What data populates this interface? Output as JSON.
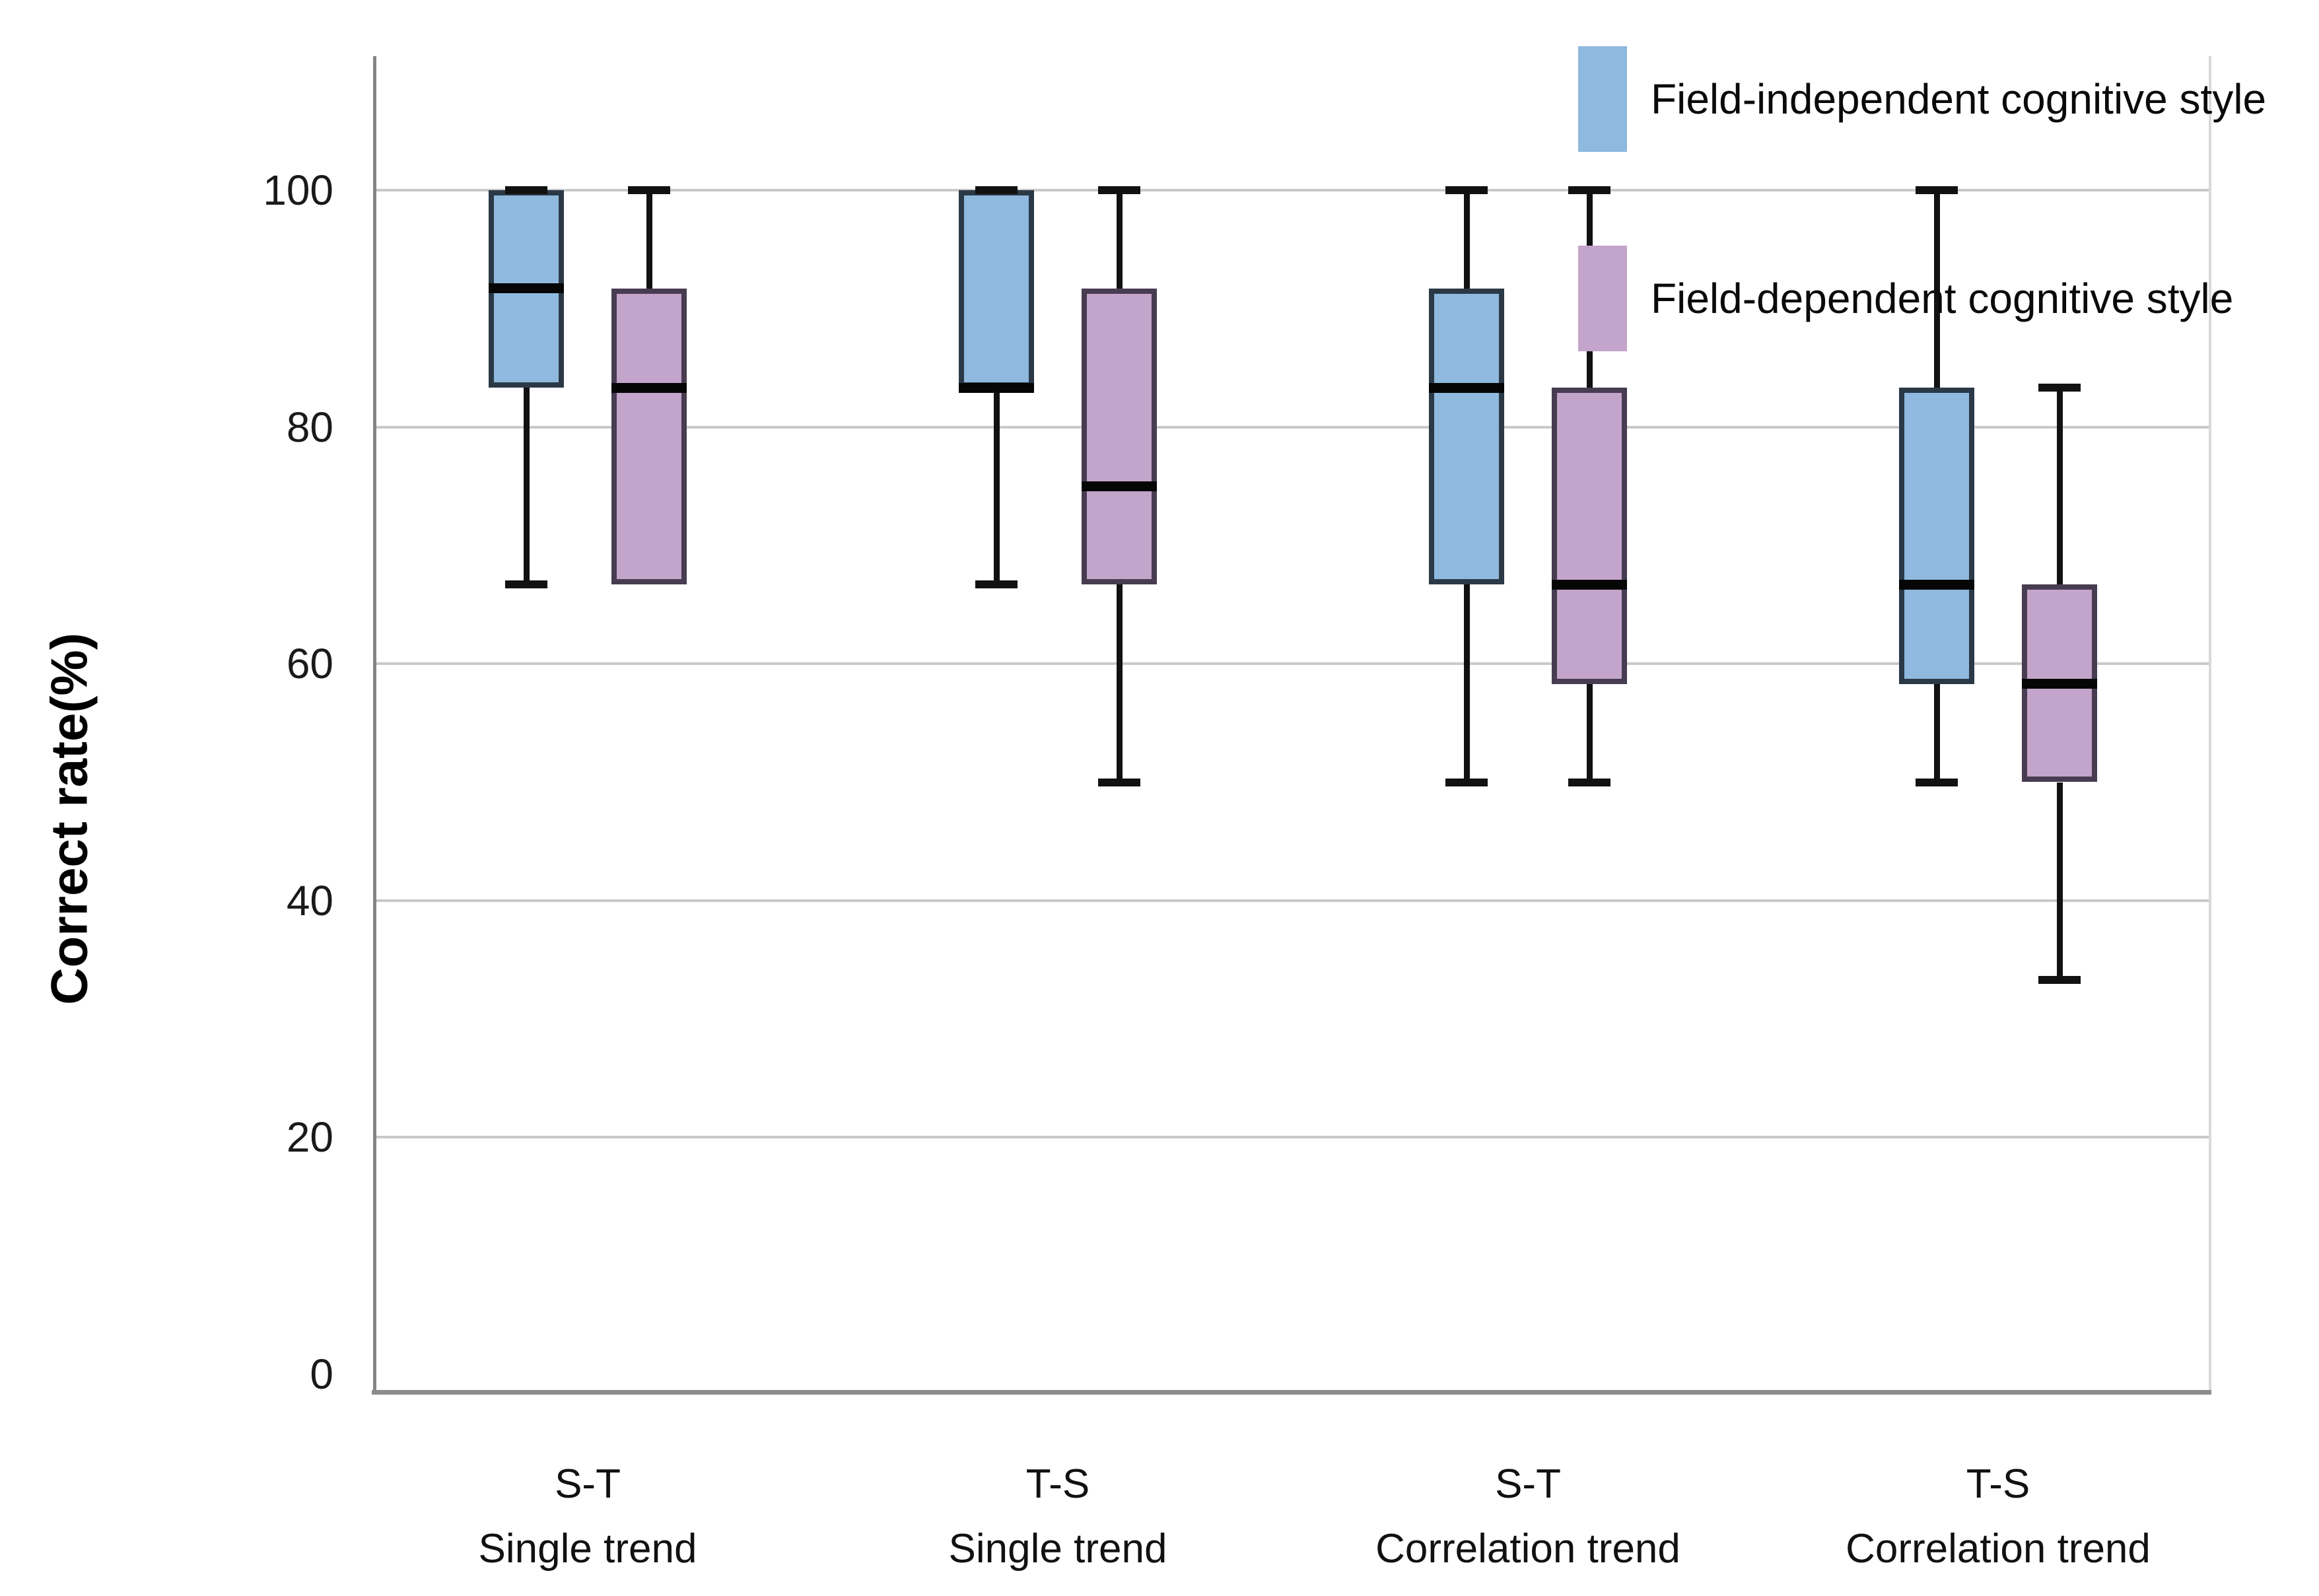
{
  "figure": {
    "y_axis_title": "Correct rate(%)"
  },
  "legend": {
    "items": [
      {
        "label": "Field-independent cognitive style",
        "color": "#8fb9de"
      },
      {
        "label": "Field-dependent cognitive style",
        "color": "#c3a4ca"
      }
    ]
  },
  "colors": {
    "blue_fill": "#8fb9de",
    "blue_border": "#2b3947",
    "purple_fill": "#c3a4ca",
    "purple_border": "#473c50",
    "median_line": "#060606",
    "gridline": "#c9c9c9",
    "axis_line": "#8c8c8c"
  },
  "chart_data": {
    "type": "boxplot",
    "title": "",
    "xlabel": "",
    "ylabel": "Correct rate(%)",
    "ylim": [
      0,
      110
    ],
    "yticks": [
      0,
      20,
      40,
      60,
      80,
      100
    ],
    "grid": true,
    "legend_position": "top-right",
    "categories": [
      {
        "line1": "S-T",
        "line2": "Single trend"
      },
      {
        "line1": "T-S",
        "line2": "Single trend"
      },
      {
        "line1": "S-T",
        "line2": "Correlation trend"
      },
      {
        "line1": "T-S",
        "line2": "Correlation trend"
      }
    ],
    "series": [
      {
        "name": "Field-independent cognitive style",
        "fill": "#8fb9de",
        "border": "#2b3947",
        "boxes": [
          {
            "min": 66.7,
            "q1": 83.3,
            "median": 91.7,
            "q3": 100,
            "max": 100
          },
          {
            "min": 66.7,
            "q1": 83.3,
            "median": 83.3,
            "q3": 100,
            "max": 100
          },
          {
            "min": 50,
            "q1": 66.7,
            "median": 83.3,
            "q3": 91.7,
            "max": 100
          },
          {
            "min": 50,
            "q1": 58.3,
            "median": 66.7,
            "q3": 83.3,
            "max": 100
          }
        ]
      },
      {
        "name": "Field-dependent cognitive style",
        "fill": "#c3a4ca",
        "border": "#473c50",
        "boxes": [
          {
            "min": 66.7,
            "q1": 66.7,
            "median": 83.3,
            "q3": 91.7,
            "max": 100
          },
          {
            "min": 50,
            "q1": 66.7,
            "median": 75,
            "q3": 91.7,
            "max": 100
          },
          {
            "min": 50,
            "q1": 58.3,
            "median": 66.7,
            "q3": 83.3,
            "max": 100
          },
          {
            "min": 33.3,
            "q1": 50,
            "median": 58.3,
            "q3": 66.7,
            "max": 83.3
          }
        ]
      }
    ]
  }
}
